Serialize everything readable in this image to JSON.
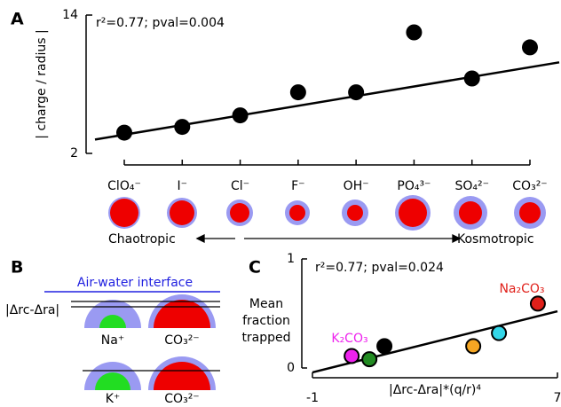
{
  "panel_labels": [
    "A",
    "B",
    "C"
  ],
  "chart_data": [
    {
      "type": "scatter",
      "ylabel": "| charge / radius |",
      "annotation": "r²=0.77; pval=0.004",
      "categories": [
        "ClO₄⁻",
        "I⁻",
        "Cl⁻",
        "F⁻",
        "OH⁻",
        "PO₄³⁻",
        "SO₄²⁻",
        "CO₃²⁻"
      ],
      "values": [
        3.8,
        4.3,
        5.3,
        7.3,
        7.3,
        12.5,
        8.5,
        11.2
      ],
      "color": "#000000",
      "ylim": [
        2,
        14
      ],
      "yticks": [
        2,
        14
      ],
      "fit_line": [
        3.2,
        9.9
      ],
      "left_label": "Chaotropic",
      "right_label": "Kosmotropic"
    },
    {
      "type": "scatter",
      "ylabel": [
        "Mean",
        "fraction",
        "trapped"
      ],
      "xlabel": "|Δrc-Δra|*(q/r)⁴",
      "annotation": "r²=0.77; pval=0.024",
      "x": [
        0.28,
        0.86,
        1.35,
        4.25,
        5.09,
        6.36
      ],
      "values": [
        0.11,
        0.08,
        0.2,
        0.2,
        0.32,
        0.59
      ],
      "colors": [
        "#ee22ee",
        "#228b22",
        "#000000",
        "#f5a623",
        "#33d6e8",
        "#e0201a"
      ],
      "xlim": [
        -1,
        7
      ],
      "ylim": [
        0,
        1
      ],
      "xticks": [
        -1,
        7
      ],
      "yticks": [
        0,
        1
      ],
      "fit_line": {
        "x": [
          -1,
          7
        ],
        "y": [
          -0.04,
          0.52
        ]
      },
      "point_labels": [
        {
          "text": "K₂CO₃",
          "color": "#ee22ee"
        },
        {
          "text": "Na₂CO₃",
          "color": "#e0201a"
        }
      ]
    }
  ],
  "diagram_b": {
    "title": "Air-water interface",
    "delta_label": "|Δrc-Δra|",
    "rows": [
      [
        "Na⁺",
        "CO₃²⁻"
      ],
      [
        "K⁺",
        "CO₃²⁻"
      ]
    ]
  }
}
